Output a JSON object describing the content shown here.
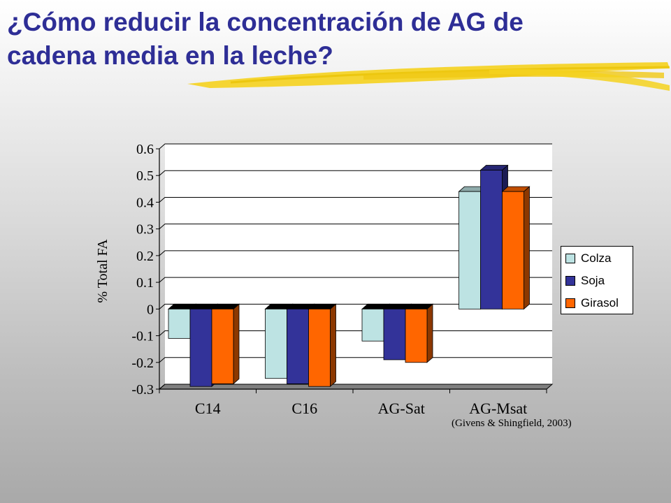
{
  "slide": {
    "title_line1": "¿Cómo reducir la concentración de AG de",
    "title_line2": "cadena media en la leche?",
    "citation": "(Givens & Shingfield, 2003)",
    "title_color": "#2E2E96",
    "underline_color": "#F5D21E"
  },
  "chart_data": {
    "type": "bar",
    "style": "3d-clustered",
    "categories": [
      "C14",
      "C16",
      "AG-Sat",
      "AG-Msat"
    ],
    "series": [
      {
        "name": "Colza",
        "values": [
          -0.11,
          -0.26,
          -0.12,
          0.44
        ],
        "color": "#BDE3E3"
      },
      {
        "name": "Soja",
        "values": [
          -0.29,
          -0.28,
          -0.19,
          0.52
        ],
        "color": "#333399"
      },
      {
        "name": "Girasol",
        "values": [
          -0.28,
          -0.29,
          -0.2,
          0.44
        ],
        "color": "#FF6600"
      }
    ],
    "ylabel": "% Total FA",
    "xlabel": "",
    "ylim": [
      -0.3,
      0.6
    ],
    "yticks": [
      0.6,
      0.5,
      0.4,
      0.3,
      0.2,
      0.1,
      0,
      -0.1,
      -0.2,
      -0.3
    ],
    "ytick_labels": [
      "0.6",
      "0.5",
      "0.4",
      "0.3",
      "0.2",
      "0.1",
      "0",
      "-0.1",
      "-0.2",
      "-0.3"
    ],
    "grid": true,
    "legend_position": "right"
  }
}
